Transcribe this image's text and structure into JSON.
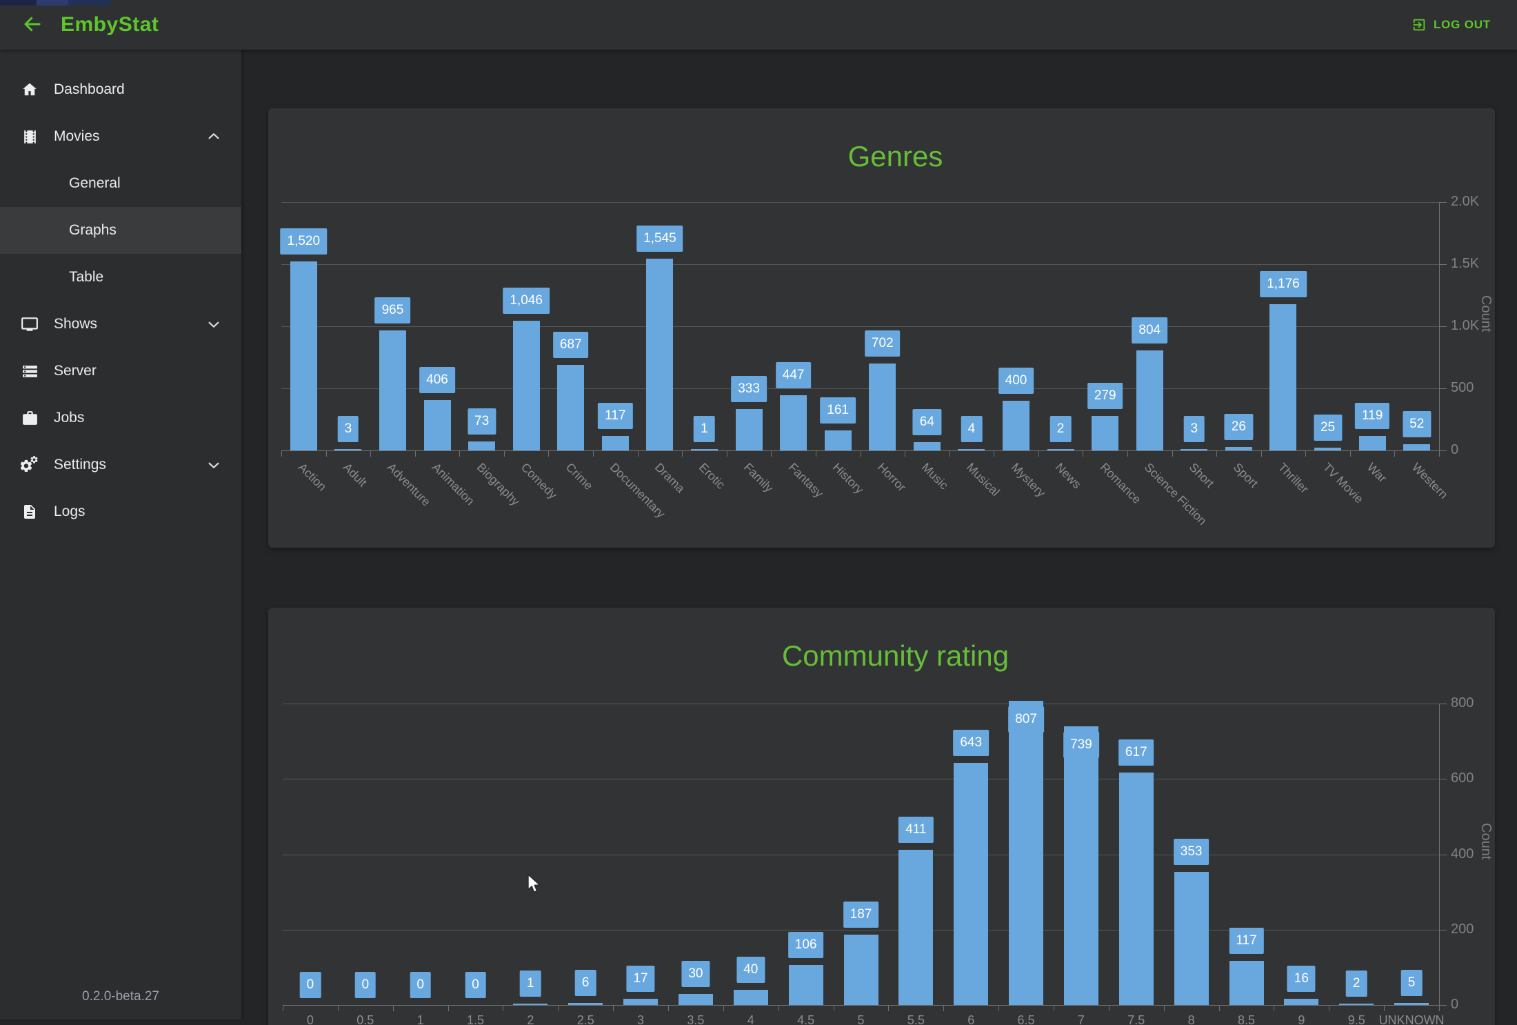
{
  "topbar": {
    "app_title": "EmbyStat",
    "logout_label": "LOG OUT"
  },
  "sidebar": {
    "items": [
      {
        "label": "Dashboard",
        "icon": "home-icon"
      },
      {
        "label": "Movies",
        "icon": "film-icon",
        "chevron": "up",
        "expanded": true
      },
      {
        "label": "General",
        "sub": true
      },
      {
        "label": "Graphs",
        "sub": true,
        "active": true
      },
      {
        "label": "Table",
        "sub": true
      },
      {
        "label": "Shows",
        "icon": "tv-icon",
        "chevron": "down"
      },
      {
        "label": "Server",
        "icon": "server-icon"
      },
      {
        "label": "Jobs",
        "icon": "briefcase-icon"
      },
      {
        "label": "Settings",
        "icon": "gears-icon",
        "chevron": "down"
      },
      {
        "label": "Logs",
        "icon": "document-icon"
      }
    ],
    "version": "0.2.0-beta.27"
  },
  "colors": {
    "accent_green": "#5dc62a",
    "title_green": "#65bd38",
    "bar_blue": "#69a8df"
  },
  "chart_data": [
    {
      "type": "bar",
      "title": "Genres",
      "categories": [
        "Action",
        "Adult",
        "Adventure",
        "Animation",
        "Biography",
        "Comedy",
        "Crime",
        "Documentary",
        "Drama",
        "Erotic",
        "Family",
        "Fantasy",
        "History",
        "Horror",
        "Music",
        "Musical",
        "Mystery",
        "News",
        "Romance",
        "Science Fiction",
        "Short",
        "Sport",
        "Thriller",
        "TV Movie",
        "War",
        "Western"
      ],
      "values": [
        1520,
        3,
        965,
        406,
        73,
        1046,
        687,
        117,
        1545,
        1,
        333,
        447,
        161,
        702,
        64,
        4,
        400,
        2,
        279,
        804,
        3,
        26,
        1176,
        25,
        119,
        52
      ],
      "value_labels": [
        "1,520",
        "3",
        "965",
        "406",
        "73",
        "1,046",
        "687",
        "117",
        "1,545",
        "1",
        "333",
        "447",
        "161",
        "702",
        "64",
        "4",
        "400",
        "2",
        "279",
        "804",
        "3",
        "26",
        "1,176",
        "25",
        "119",
        "52"
      ],
      "xlabel": "",
      "ylabel": "Count",
      "ylim": [
        0,
        2000
      ],
      "yticks": [
        "0",
        "500",
        "1.0K",
        "1.5K",
        "2.0K"
      ],
      "yaxis_position": "right",
      "x_label_rotation": 45,
      "grid": true,
      "legend": "none",
      "bar_color": "#69a8df"
    },
    {
      "type": "bar",
      "title": "Community rating",
      "categories": [
        "0",
        "0.5",
        "1",
        "1.5",
        "2",
        "2.5",
        "3",
        "3.5",
        "4",
        "4.5",
        "5",
        "5.5",
        "6",
        "6.5",
        "7",
        "7.5",
        "8",
        "8.5",
        "9",
        "9.5",
        "UNKNOWN"
      ],
      "values": [
        0,
        0,
        0,
        0,
        1,
        6,
        17,
        30,
        40,
        106,
        187,
        411,
        643,
        807,
        739,
        617,
        353,
        117,
        16,
        2,
        5
      ],
      "value_labels": [
        "0",
        "0",
        "0",
        "0",
        "1",
        "6",
        "17",
        "30",
        "40",
        "106",
        "187",
        "411",
        "643",
        "807",
        "739",
        "617",
        "353",
        "117",
        "16",
        "2",
        "5"
      ],
      "xlabel": "",
      "ylabel": "Count",
      "ylim": [
        0,
        800
      ],
      "yticks": [
        "0",
        "200",
        "400",
        "600",
        "800"
      ],
      "yaxis_position": "right",
      "x_label_rotation": 0,
      "grid": true,
      "legend": "none",
      "bar_color": "#69a8df"
    }
  ]
}
